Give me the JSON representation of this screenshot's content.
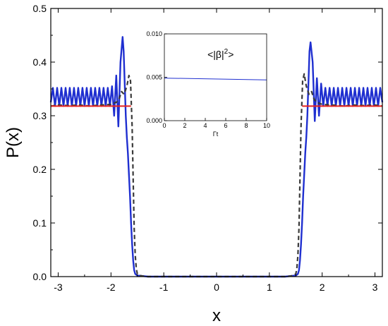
{
  "chart_data": [
    {
      "type": "line",
      "title": "",
      "xlabel": "x",
      "ylabel": "P(x)",
      "xlim": [
        -3.14,
        3.14
      ],
      "ylim": [
        0,
        0.5
      ],
      "xticks": [
        "-3",
        "-2",
        "-1",
        "0",
        "1",
        "2",
        "3"
      ],
      "xtick_values": [
        -3,
        -2,
        -1,
        0,
        1,
        2,
        3
      ],
      "yticks": [
        "0.0",
        "0.1",
        "0.2",
        "0.3",
        "0.4",
        "0.5"
      ],
      "ytick_values": [
        0,
        0.1,
        0.2,
        0.3,
        0.4,
        0.5
      ],
      "grid": false,
      "legend": "none",
      "series": [
        {
          "style": "solid",
          "color": "#1f2fd0",
          "x": [
            -3.14,
            -3.1,
            -3.06,
            -3.02,
            -2.98,
            -2.94,
            -2.9,
            -2.86,
            -2.82,
            -2.78,
            -2.74,
            -2.7,
            -2.66,
            -2.62,
            -2.58,
            -2.54,
            -2.5,
            -2.46,
            -2.42,
            -2.38,
            -2.34,
            -2.3,
            -2.26,
            -2.22,
            -2.18,
            -2.14,
            -2.1,
            -2.06,
            -2.02,
            -1.98,
            -1.94,
            -1.9,
            -1.86,
            -1.82,
            -1.78,
            -1.76,
            -1.74,
            -1.72,
            -1.7,
            -1.68,
            -1.66,
            -1.64,
            -1.62,
            -1.6,
            -1.58,
            -1.56,
            -1.54,
            -1.5,
            -1.4,
            -1.3,
            -1.2,
            -1.0,
            -0.8,
            -0.6,
            -0.4,
            -0.2,
            0.0,
            0.2,
            0.4,
            0.6,
            0.8,
            1.0,
            1.2,
            1.3,
            1.4,
            1.5,
            1.54,
            1.56,
            1.58,
            1.6,
            1.62,
            1.64,
            1.66,
            1.68,
            1.7,
            1.72,
            1.74,
            1.76,
            1.78,
            1.82,
            1.86,
            1.9,
            1.94,
            1.98,
            2.02,
            2.06,
            2.1,
            2.14,
            2.18,
            2.22,
            2.26,
            2.3,
            2.34,
            2.38,
            2.42,
            2.46,
            2.5,
            2.54,
            2.58,
            2.62,
            2.66,
            2.7,
            2.74,
            2.78,
            2.82,
            2.86,
            2.9,
            2.94,
            2.98,
            3.02,
            3.06,
            3.1,
            3.14
          ],
          "y": [
            0.325,
            0.352,
            0.318,
            0.352,
            0.318,
            0.352,
            0.318,
            0.352,
            0.318,
            0.352,
            0.318,
            0.352,
            0.318,
            0.352,
            0.318,
            0.352,
            0.318,
            0.352,
            0.318,
            0.352,
            0.318,
            0.352,
            0.318,
            0.352,
            0.318,
            0.352,
            0.318,
            0.352,
            0.318,
            0.355,
            0.3,
            0.375,
            0.28,
            0.4,
            0.447,
            0.42,
            0.36,
            0.3,
            0.26,
            0.23,
            0.19,
            0.15,
            0.1,
            0.06,
            0.03,
            0.012,
            0.005,
            0.002,
            0.001,
            0.0,
            0.0,
            0.0,
            0.0,
            0.0,
            0.0,
            0.0,
            0.0,
            0.0,
            0.0,
            0.0,
            0.0,
            0.0,
            0.0,
            0.0,
            0.001,
            0.002,
            0.005,
            0.012,
            0.03,
            0.06,
            0.1,
            0.15,
            0.19,
            0.23,
            0.26,
            0.3,
            0.36,
            0.42,
            0.437,
            0.4,
            0.29,
            0.37,
            0.3,
            0.36,
            0.318,
            0.352,
            0.318,
            0.352,
            0.318,
            0.352,
            0.318,
            0.352,
            0.318,
            0.352,
            0.318,
            0.352,
            0.318,
            0.352,
            0.318,
            0.352,
            0.318,
            0.352,
            0.318,
            0.352,
            0.318,
            0.352,
            0.318,
            0.352,
            0.318,
            0.352,
            0.318,
            0.352,
            0.325
          ]
        },
        {
          "style": "dashed",
          "color": "#3a3a3a",
          "x": [
            -3.14,
            -3.0,
            -2.8,
            -2.6,
            -2.4,
            -2.2,
            -2.0,
            -1.9,
            -1.85,
            -1.8,
            -1.75,
            -1.7,
            -1.66,
            -1.63,
            -1.6,
            -1.58,
            -1.56,
            -1.54,
            -1.52,
            -1.5,
            -1.45,
            -1.4,
            -1.3,
            -1.0,
            0.0,
            1.0,
            1.3,
            1.4,
            1.45,
            1.5,
            1.52,
            1.54,
            1.56,
            1.58,
            1.6,
            1.63,
            1.66,
            1.7,
            1.75,
            1.8,
            1.85,
            1.9,
            2.0,
            2.2,
            2.4,
            2.6,
            2.8,
            3.0,
            3.14
          ],
          "y": [
            0.318,
            0.32,
            0.319,
            0.32,
            0.318,
            0.32,
            0.321,
            0.325,
            0.33,
            0.345,
            0.34,
            0.355,
            0.375,
            0.365,
            0.28,
            0.18,
            0.09,
            0.04,
            0.015,
            0.005,
            0.002,
            0.001,
            0.0,
            0.0,
            0.0,
            0.0,
            0.0,
            0.001,
            0.002,
            0.005,
            0.015,
            0.04,
            0.09,
            0.18,
            0.28,
            0.365,
            0.378,
            0.355,
            0.34,
            0.345,
            0.33,
            0.325,
            0.321,
            0.32,
            0.318,
            0.32,
            0.319,
            0.32,
            0.318
          ]
        },
        {
          "style": "solid",
          "color": "#e8231e",
          "x": [
            -3.14,
            -1.62,
            1.62,
            3.14
          ],
          "y": [
            0.318,
            0.318,
            0.318,
            0.318
          ],
          "segments": [
            [
              -3.14,
              -1.62
            ],
            [
              1.62,
              3.14
            ]
          ]
        }
      ]
    },
    {
      "type": "line",
      "title": "<|β|²>",
      "title_parts": {
        "base": "<|β|",
        "sup": "2",
        "end": ">"
      },
      "xlabel": "Γt",
      "ylabel": "",
      "xlim": [
        0,
        10
      ],
      "ylim": [
        0,
        0.01
      ],
      "xticks": [
        "0",
        "2",
        "4",
        "6",
        "8",
        "10"
      ],
      "xtick_values": [
        0,
        2,
        4,
        6,
        8,
        10
      ],
      "yticks": [
        "0.000",
        "0.005",
        "0.010"
      ],
      "ytick_values": [
        0,
        0.005,
        0.01
      ],
      "grid": false,
      "legend": "none",
      "series": [
        {
          "style": "solid",
          "color": "#2030d0",
          "x": [
            0,
            10
          ],
          "y": [
            0.0049,
            0.0047
          ]
        }
      ]
    }
  ]
}
